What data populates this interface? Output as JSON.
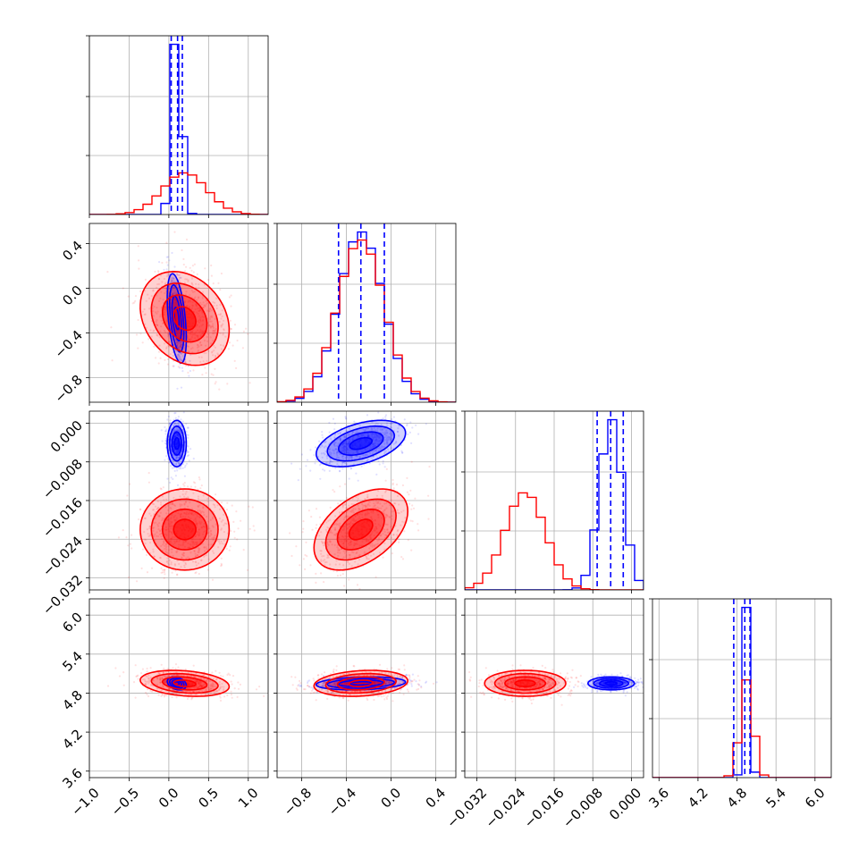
{
  "colors": {
    "red": "#ff0000",
    "blue": "#0000ff",
    "grid": "#b0b0b0"
  },
  "chart_data": {
    "type": "corner",
    "grid": true,
    "parameters": [
      {
        "range": [
          -1.0,
          1.25
        ],
        "ticks": [
          -1.0,
          -0.5,
          0.0,
          0.5,
          1.0
        ],
        "tick_labels": [
          "−1.0",
          "−0.5",
          "0.0",
          "0.5",
          "1.0"
        ]
      },
      {
        "range": [
          -1.02,
          0.58
        ],
        "ticks": [
          -0.8,
          -0.4,
          0.0,
          0.4
        ],
        "tick_labels": [
          "−0.8",
          "−0.4",
          "0.0",
          "0.4"
        ]
      },
      {
        "range": [
          -0.0345,
          0.0025
        ],
        "ticks": [
          -0.032,
          -0.024,
          -0.016,
          -0.008,
          0.0
        ],
        "tick_labels": [
          "−0.032",
          "−0.024",
          "−0.016",
          "−0.008",
          "0.000"
        ]
      },
      {
        "range": [
          3.5,
          6.25
        ],
        "ticks": [
          3.6,
          4.2,
          4.8,
          5.4,
          6.0
        ],
        "tick_labels": [
          "3.6",
          "4.2",
          "4.8",
          "5.4",
          "6.0"
        ]
      }
    ],
    "series": [
      {
        "color": "red",
        "mean": [
          0.2,
          -0.27,
          -0.022,
          4.95
        ],
        "std": [
          0.28,
          0.21,
          0.0042,
          0.1
        ],
        "corr": {
          "0-1": -0.25,
          "1-2": 0.45,
          "0-3": -0.25,
          "1-3": 0.2
        }
      },
      {
        "color": "blue",
        "mean": [
          0.1,
          -0.27,
          -0.0042,
          4.95
        ],
        "std": [
          0.06,
          0.2,
          0.0024,
          0.05
        ],
        "corr": {
          "0-1": -0.45,
          "1-2": 0.45,
          "0-3": -0.3,
          "1-3": 0.2
        }
      }
    ],
    "quantile_lines": [
      {
        "param": 0,
        "values": [
          0.03,
          0.11,
          0.17
        ]
      },
      {
        "param": 1,
        "values": [
          -0.47,
          -0.27,
          -0.06
        ]
      },
      {
        "param": 2,
        "values": [
          -0.0071,
          -0.0043,
          -0.0017
        ]
      },
      {
        "param": 3,
        "values": [
          4.75,
          4.92,
          5.0
        ]
      }
    ]
  }
}
